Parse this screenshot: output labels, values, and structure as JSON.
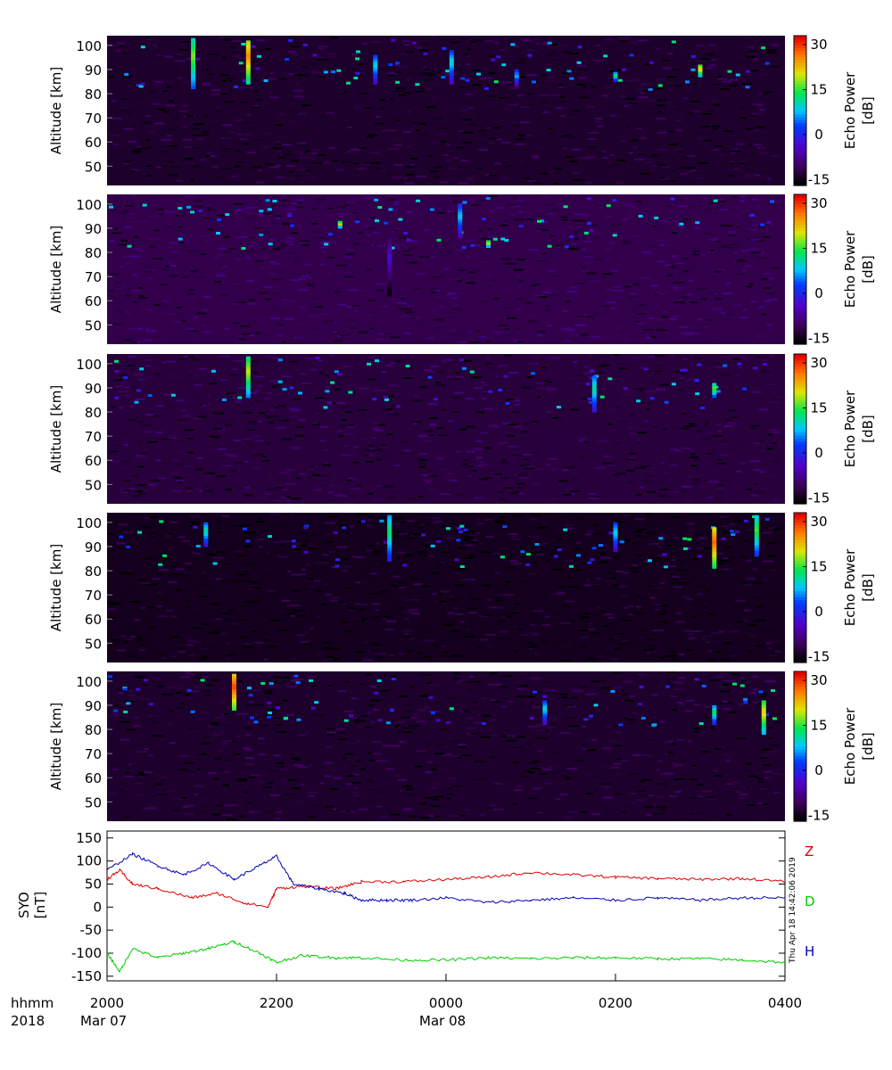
{
  "figure": {
    "time_header": "hhmm",
    "year_label": "2018",
    "x_ticks": [
      "2000",
      "2200",
      "0000",
      "0200",
      "0400"
    ],
    "date_labels": [
      "Mar 07",
      "Mar 08"
    ],
    "timestamp": "Thu Apr 18 14:42:06 2019"
  },
  "chart_data": [
    {
      "type": "heatmap",
      "panel": 1,
      "ylabel": "Altitude [km]",
      "yticks": [
        50,
        60,
        70,
        80,
        90,
        100
      ],
      "ylim": [
        42,
        104
      ],
      "colorbar": {
        "label_top": "Echo Power",
        "label_bottom": "[dB]",
        "ticks": [
          30,
          15,
          0,
          -15
        ],
        "range": [
          -17,
          33
        ]
      },
      "background_db": -14,
      "events": [
        {
          "t": "2101",
          "alt_top": 103,
          "alt_bottom": 82,
          "db": 18
        },
        {
          "t": "2140",
          "alt_top": 102,
          "alt_bottom": 84,
          "db": 26
        },
        {
          "t": "2310",
          "alt_top": 96,
          "alt_bottom": 84,
          "db": 10
        },
        {
          "t": "0004",
          "alt_top": 98,
          "alt_bottom": 84,
          "db": 10
        },
        {
          "t": "0050",
          "alt_top": 90,
          "alt_bottom": 83,
          "db": 8
        },
        {
          "t": "0200",
          "alt_top": 89,
          "alt_bottom": 85,
          "db": 14
        },
        {
          "t": "0300",
          "alt_top": 92,
          "alt_bottom": 87,
          "db": 24
        }
      ]
    },
    {
      "type": "heatmap",
      "panel": 2,
      "ylabel": "Altitude [km]",
      "yticks": [
        50,
        60,
        70,
        80,
        90,
        100
      ],
      "ylim": [
        42,
        104
      ],
      "colorbar": {
        "label_top": "Echo Power",
        "label_bottom": "[dB]",
        "ticks": [
          30,
          15,
          0,
          -15
        ],
        "range": [
          -17,
          33
        ]
      },
      "background_db": -12,
      "events": [
        {
          "t": "0010",
          "alt_top": 100,
          "alt_bottom": 86,
          "db": 9
        },
        {
          "t": "2320",
          "alt_top": 86,
          "alt_bottom": 62,
          "db": -3
        },
        {
          "t": "2245",
          "alt_top": 93,
          "alt_bottom": 90,
          "db": 22
        },
        {
          "t": "0030",
          "alt_top": 85,
          "alt_bottom": 82,
          "db": 22
        }
      ]
    },
    {
      "type": "heatmap",
      "panel": 3,
      "ylabel": "Altitude [km]",
      "yticks": [
        50,
        60,
        70,
        80,
        90,
        100
      ],
      "ylim": [
        42,
        104
      ],
      "colorbar": {
        "label_top": "Echo Power",
        "label_bottom": "[dB]",
        "ticks": [
          30,
          15,
          0,
          -15
        ],
        "range": [
          -17,
          33
        ]
      },
      "background_db": -13,
      "events": [
        {
          "t": "2140",
          "alt_top": 103,
          "alt_bottom": 86,
          "db": 20
        },
        {
          "t": "0145",
          "alt_top": 95,
          "alt_bottom": 80,
          "db": 12
        },
        {
          "t": "0310",
          "alt_top": 92,
          "alt_bottom": 86,
          "db": 18
        }
      ]
    },
    {
      "type": "heatmap",
      "panel": 4,
      "ylabel": "Altitude [km]",
      "yticks": [
        50,
        60,
        70,
        80,
        90,
        100
      ],
      "ylim": [
        42,
        104
      ],
      "colorbar": {
        "label_top": "Echo Power",
        "label_bottom": "[dB]",
        "ticks": [
          30,
          15,
          0,
          -15
        ],
        "range": [
          -17,
          33
        ]
      },
      "background_db": -15,
      "events": [
        {
          "t": "2320",
          "alt_top": 103,
          "alt_bottom": 84,
          "db": 14
        },
        {
          "t": "0310",
          "alt_top": 98,
          "alt_bottom": 81,
          "db": 28
        },
        {
          "t": "0340",
          "alt_top": 103,
          "alt_bottom": 86,
          "db": 16
        },
        {
          "t": "2110",
          "alt_top": 100,
          "alt_bottom": 90,
          "db": 12
        },
        {
          "t": "0200",
          "alt_top": 100,
          "alt_bottom": 88,
          "db": 10
        }
      ]
    },
    {
      "type": "heatmap",
      "panel": 5,
      "ylabel": "Altitude [km]",
      "yticks": [
        50,
        60,
        70,
        80,
        90,
        100
      ],
      "ylim": [
        42,
        104
      ],
      "colorbar": {
        "label_top": "Echo Power",
        "label_bottom": "[dB]",
        "ticks": [
          30,
          15,
          0,
          -15
        ],
        "range": [
          -17,
          33
        ]
      },
      "background_db": -14,
      "events": [
        {
          "t": "2130",
          "alt_top": 103,
          "alt_bottom": 88,
          "db": 30
        },
        {
          "t": "0310",
          "alt_top": 90,
          "alt_bottom": 82,
          "db": 14
        },
        {
          "t": "0345",
          "alt_top": 92,
          "alt_bottom": 78,
          "db": 22
        },
        {
          "t": "0110",
          "alt_top": 92,
          "alt_bottom": 82,
          "db": 10
        }
      ]
    },
    {
      "type": "line",
      "panel": 6,
      "ylabel": "SYO",
      "ylabel2": "[nT]",
      "yticks": [
        150,
        100,
        50,
        0,
        -50,
        -100,
        -150
      ],
      "ylim": [
        -160,
        165
      ],
      "x_hours_range": [
        20,
        28
      ],
      "series": [
        {
          "name": "Z",
          "color": "#dd0000",
          "x": [
            20.0,
            20.15,
            20.3,
            20.6,
            21.0,
            21.3,
            21.6,
            21.9,
            22.0,
            22.3,
            22.7,
            23.0,
            23.5,
            24.0,
            24.5,
            25.0,
            25.5,
            26.0,
            26.5,
            27.0,
            27.5,
            28.0
          ],
          "y": [
            60,
            80,
            50,
            40,
            20,
            30,
            10,
            0,
            40,
            45,
            40,
            55,
            55,
            60,
            65,
            75,
            70,
            65,
            62,
            60,
            62,
            55
          ]
        },
        {
          "name": "D",
          "color": "#00cc00",
          "x": [
            20.0,
            20.15,
            20.3,
            20.6,
            20.9,
            21.2,
            21.5,
            21.8,
            22.0,
            22.3,
            22.7,
            23.0,
            23.5,
            24.0,
            24.5,
            25.0,
            25.5,
            26.0,
            26.5,
            27.0,
            27.5,
            28.0
          ],
          "y": [
            -100,
            -140,
            -90,
            -110,
            -100,
            -90,
            -75,
            -100,
            -120,
            -105,
            -110,
            -110,
            -115,
            -115,
            -110,
            -112,
            -110,
            -110,
            -112,
            -112,
            -115,
            -120
          ]
        },
        {
          "name": "H",
          "color": "#0000bb",
          "x": [
            20.0,
            20.3,
            20.6,
            20.9,
            21.2,
            21.5,
            21.8,
            22.0,
            22.2,
            22.5,
            22.8,
            23.0,
            23.3,
            23.6,
            24.0,
            24.5,
            25.0,
            25.5,
            26.0,
            26.5,
            27.0,
            27.5,
            28.0
          ],
          "y": [
            80,
            115,
            90,
            70,
            95,
            60,
            90,
            110,
            50,
            40,
            30,
            15,
            15,
            15,
            20,
            10,
            15,
            20,
            15,
            20,
            15,
            20,
            20
          ]
        }
      ]
    }
  ]
}
